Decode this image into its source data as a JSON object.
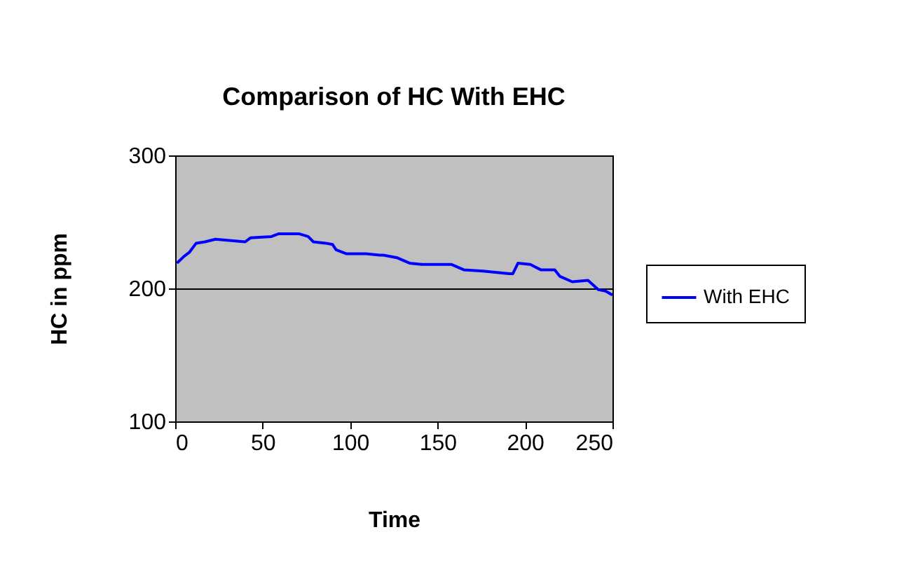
{
  "chart_data": {
    "type": "line",
    "title": "Comparison of HC With EHC",
    "xlabel": "Time",
    "ylabel": "HC in ppm",
    "x": [
      1,
      5,
      8,
      12,
      17,
      23,
      31,
      40,
      43,
      55,
      59,
      71,
      76,
      79,
      86,
      90,
      92,
      98,
      109,
      117,
      119,
      127,
      134,
      141,
      158,
      165,
      176,
      191,
      193,
      196,
      203,
      209,
      217,
      220,
      227,
      236,
      242,
      246,
      250
    ],
    "series": [
      {
        "name": "With EHC",
        "color": "#0000ff",
        "values": [
          219,
          224,
          227,
          234,
          235,
          237,
          236,
          235,
          238,
          239,
          241,
          241,
          239,
          235,
          234,
          233,
          229,
          226,
          226,
          225,
          225,
          223,
          219,
          218,
          218,
          214,
          213,
          211,
          211,
          219,
          218,
          214,
          214,
          209,
          205,
          206,
          199,
          198,
          195
        ]
      }
    ],
    "xlim": [
      0,
      250
    ],
    "xticks": [
      0,
      50,
      100,
      150,
      200,
      250
    ],
    "ylim": [
      100,
      300
    ],
    "yticks": [
      100,
      200,
      300
    ],
    "grid": "y",
    "legend": "right",
    "marker": "none",
    "line_style": "solid"
  }
}
